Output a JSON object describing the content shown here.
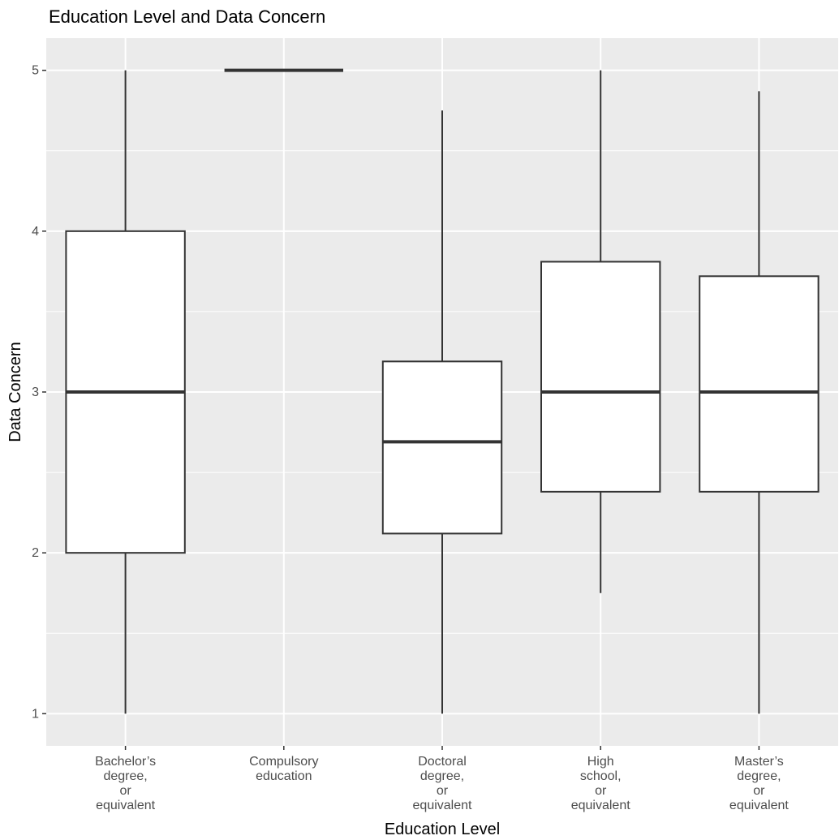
{
  "chart_data": {
    "type": "box",
    "title": "Education Level and Data Concern",
    "xlabel": "Education Level",
    "ylabel": "Data Concern",
    "ylim": [
      0.8,
      5.2
    ],
    "yticks": [
      1,
      2,
      3,
      4,
      5
    ],
    "grid": true,
    "colors": {
      "panel": "#EBEBEB",
      "grid": "#FFFFFF",
      "box_fill": "#FFFFFF",
      "box_line": "#333333",
      "axis_text": "#4D4D4D",
      "title_text": "#000000"
    },
    "categories": [
      {
        "label": [
          "Bachelor’s",
          "degree,",
          "or",
          "equivalent"
        ],
        "min": 1,
        "q1": 2,
        "median": 3,
        "q3": 4,
        "max": 5
      },
      {
        "label": [
          "Compulsory",
          "education"
        ],
        "min": 5,
        "q1": 5,
        "median": 5,
        "q3": 5,
        "max": 5
      },
      {
        "label": [
          "Doctoral",
          "degree,",
          "or",
          "equivalent"
        ],
        "min": 1,
        "q1": 2.12,
        "median": 2.69,
        "q3": 3.19,
        "max": 4.75
      },
      {
        "label": [
          "High",
          "school,",
          "or",
          "equivalent"
        ],
        "min": 1.75,
        "q1": 2.38,
        "median": 3,
        "q3": 3.81,
        "max": 5
      },
      {
        "label": [
          "Master’s",
          "degree,",
          "or",
          "equivalent"
        ],
        "min": 1,
        "q1": 2.38,
        "median": 3,
        "q3": 3.72,
        "max": 4.87
      }
    ]
  }
}
